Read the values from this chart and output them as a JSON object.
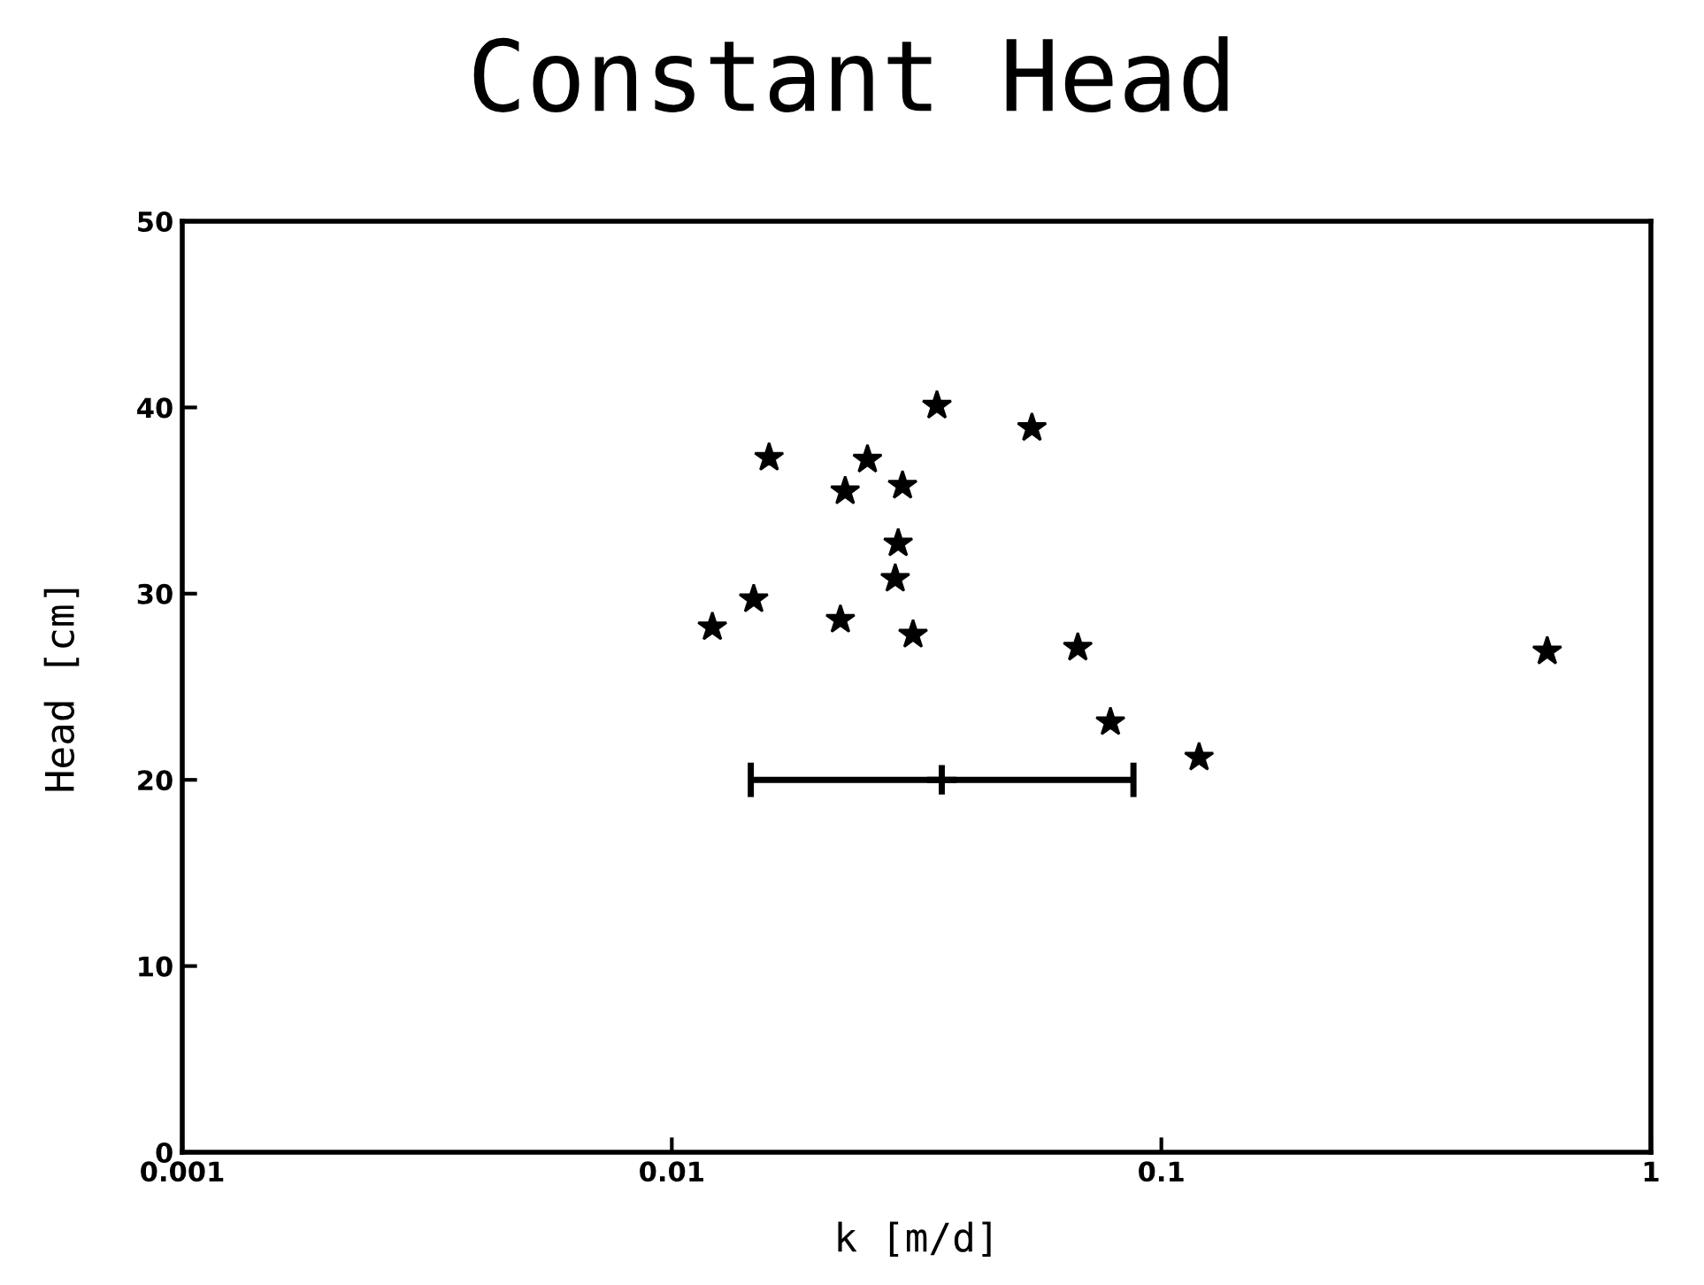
{
  "chart_data": {
    "type": "scatter",
    "title": "Constant Head",
    "xlabel": "k [m/d]",
    "ylabel": "Head [cm]",
    "log": "x",
    "xlim": [
      0.001,
      1
    ],
    "xticks": [
      0.001,
      0.01,
      0.1,
      1
    ],
    "ylim": [
      0,
      50
    ],
    "yticks": [
      0,
      10,
      20,
      30,
      40,
      50
    ],
    "grid": false,
    "marker": "star",
    "series": [
      {
        "color": "#000000",
        "x": [
          0.0121,
          0.0147,
          0.0158,
          0.0221,
          0.0226,
          0.0251,
          0.0296,
          0.029,
          0.0286,
          0.0311,
          0.0348,
          0.0544,
          0.0675,
          0.0787,
          0.1194,
          0.614
        ],
        "values": [
          28.2,
          29.7,
          37.3,
          28.6,
          35.5,
          37.2,
          35.8,
          32.7,
          30.8,
          27.8,
          40.1,
          38.9,
          27.1,
          23.1,
          21.2,
          26.9
        ]
      },
      {
        "color": "#000000",
        "marker": "cross",
        "x": [
          0.0356
        ],
        "values": [
          20
        ],
        "xerrors": [
          [
            0.0145,
            0.0877
          ]
        ]
      }
    ]
  }
}
